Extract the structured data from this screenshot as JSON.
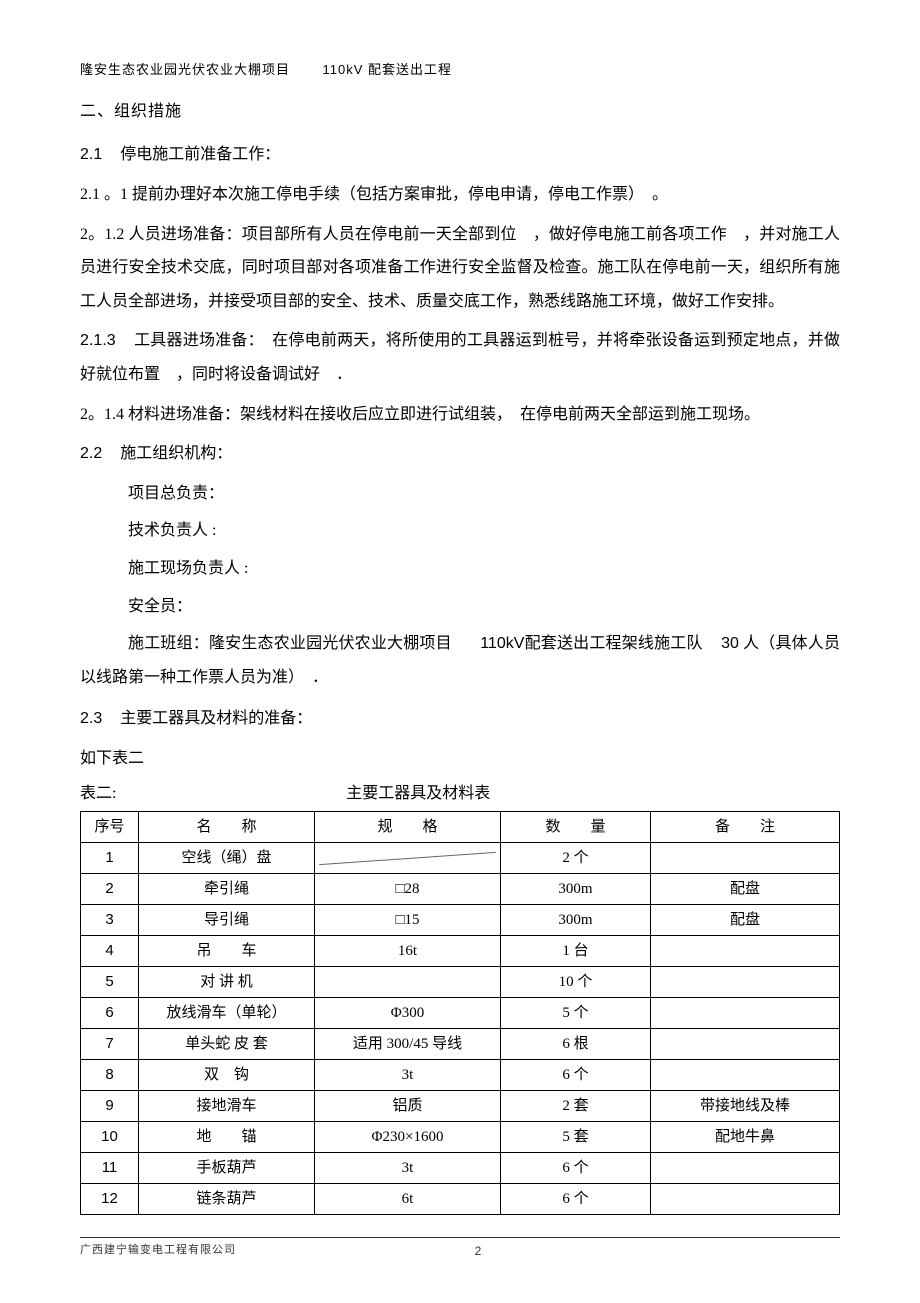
{
  "header": {
    "project": "隆安生态农业园光伏农业大棚项目",
    "subproject": "110kV 配套送出工程"
  },
  "sections": {
    "title": "二、组织措施",
    "s21_label": "2.1",
    "s21_text": "停电施工前准备工作：",
    "s211": "2.1 。1 提前办理好本次施工停电手续（包括方案审批，停电申请，停电工作票）　。",
    "s212": "2。1.2 人员进场准备：项目部所有人员在停电前一天全部到位　，做好停电施工前各项工作　，并对施工人员进行安全技术交底，同时项目部对各项准备工作进行安全监督及检查。施工队在停电前一天，组织所有施工人员全部进场，并接受项目部的安全、技术、质量交底工作，熟悉线路施工环境，做好工作安排。",
    "s213_label": "2.1.3",
    "s213_text": "工具器进场准备：　在停电前两天，将所使用的工具器运到桩号，并将牵张设备运到预定地点，并做好就位布置　，同时将设备调试好　．",
    "s214": "2。1.4 材料进场准备：架线材料在接收后应立即进行试组装，　在停电前两天全部运到施工现场。",
    "s22_label": "2.2",
    "s22_text": "施工组织机构：",
    "roles": {
      "r1": "项目总负责：",
      "r2": "技术负责人 :",
      "r3": "施工现场负责人 :",
      "r4": "安全员："
    },
    "team_prefix": "施工班组：隆安生态农业园光伏农业大棚项目",
    "team_mid": "110kV配套送出工程架线施工队",
    "team_num": "30",
    "team_suffix": "人（具体人员以线路第一种工作票人员为准）　．",
    "s23_label": "2.3",
    "s23_text": "主要工器具及材料的准备：",
    "s23_sub": "如下表二",
    "tbl_label": "表二:",
    "tbl_title": "主要工器具及材料表"
  },
  "table": {
    "headers": {
      "idx": "序号",
      "name": "名　　称",
      "spec": "规　　格",
      "qty": "数　　量",
      "note": "备　　注"
    },
    "rows": [
      {
        "idx": "1",
        "name": "空线（绳）盘",
        "spec": "",
        "qty": "2 个",
        "note": ""
      },
      {
        "idx": "2",
        "name": "牵引绳",
        "spec": "□28",
        "qty": "300m",
        "note": "配盘"
      },
      {
        "idx": "3",
        "name": "导引绳",
        "spec": "□15",
        "qty": "300m",
        "note": "配盘"
      },
      {
        "idx": "4",
        "name": "吊　　车",
        "spec": "16t",
        "qty": "1 台",
        "note": ""
      },
      {
        "idx": "5",
        "name": "对 讲 机",
        "spec": "",
        "qty": "10 个",
        "note": ""
      },
      {
        "idx": "6",
        "name": "放线滑车（单轮）",
        "spec": "Φ300",
        "qty": "5 个",
        "note": ""
      },
      {
        "idx": "7",
        "name": "单头蛇 皮 套",
        "spec": "适用 300/45 导线",
        "qty": "6 根",
        "note": ""
      },
      {
        "idx": "8",
        "name": "双　钩",
        "spec": "3t",
        "qty": "6 个",
        "note": ""
      },
      {
        "idx": "9",
        "name": "接地滑车",
        "spec": "铝质",
        "qty": "2 套",
        "note": "带接地线及棒"
      },
      {
        "idx": "10",
        "name": "地　　锚",
        "spec": "Φ230×1600",
        "qty": "5 套",
        "note": "配地牛鼻"
      },
      {
        "idx": "11",
        "name": "手板葫芦",
        "spec": "3t",
        "qty": "6 个",
        "note": ""
      },
      {
        "idx": "12",
        "name": "链条葫芦",
        "spec": "6t",
        "qty": "6 个",
        "note": ""
      }
    ]
  },
  "footer": {
    "company": "广西建宁输变电工程有限公司",
    "page": "2"
  }
}
